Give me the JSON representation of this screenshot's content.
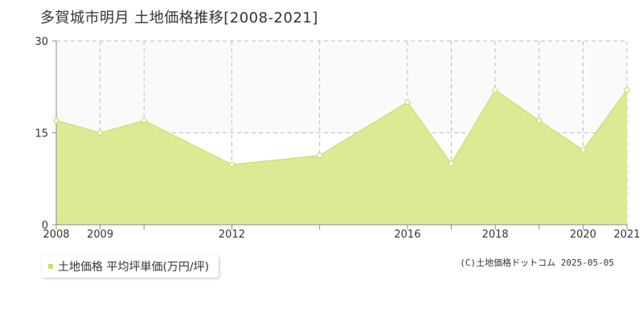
{
  "title": "多賀城市明月 土地価格推移[2008-2021]",
  "copyright": "(C)土地価格ドットコム 2025-05-05",
  "colors": {
    "fill": "#dbeb94",
    "line": "#c4e06a",
    "grid": "#bbbbbb",
    "axis": "#888888",
    "band": "#fafafa"
  },
  "chart_data": {
    "type": "area",
    "title": "多賀城市明月 土地価格推移[2008-2021]",
    "xlabel": "",
    "ylabel": "",
    "xlim": [
      2008,
      2021
    ],
    "ylim": [
      0,
      30
    ],
    "yticks": [
      0,
      15,
      30
    ],
    "xticks": [
      2008,
      2009,
      2012,
      2016,
      2018,
      2020,
      2021
    ],
    "grid": true,
    "legend": "bottom-left",
    "series": [
      {
        "name": "土地価格 平均坪単価(万円/坪)",
        "x": [
          2008,
          2009,
          2010,
          2012,
          2014,
          2016,
          2017,
          2018,
          2019,
          2020,
          2021
        ],
        "values": [
          17,
          15,
          17,
          9.8,
          11.3,
          20,
          10,
          22,
          17,
          12.2,
          22
        ]
      }
    ]
  }
}
